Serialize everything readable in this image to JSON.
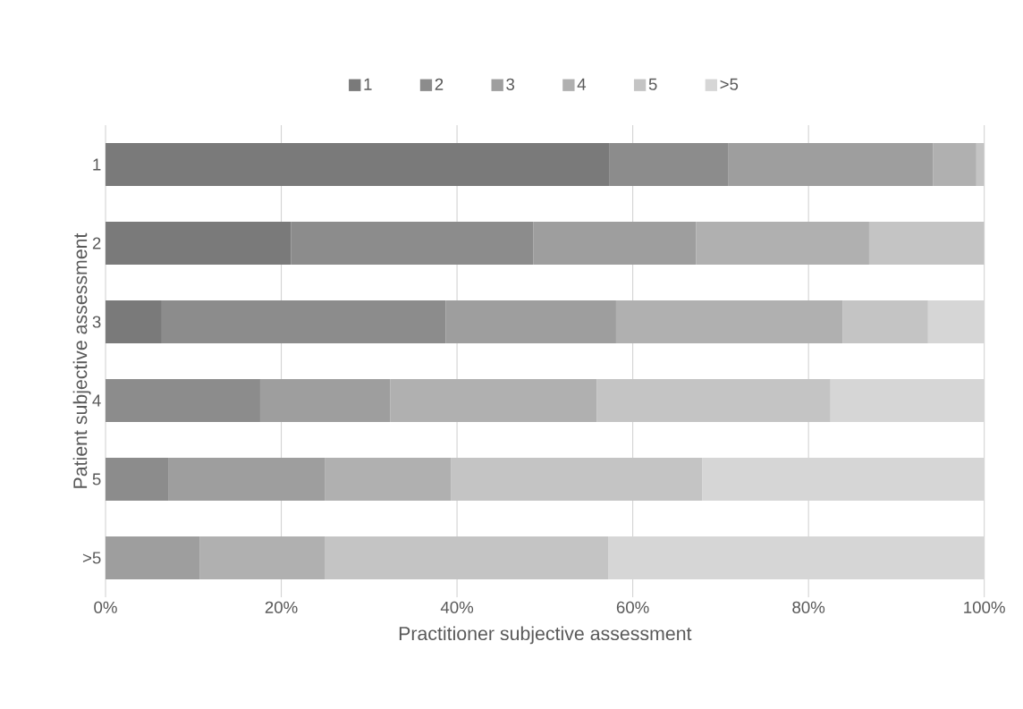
{
  "chart_data": {
    "type": "bar",
    "orientation": "horizontal",
    "stacked": true,
    "xlabel": "Practitioner subjective assessment",
    "ylabel": "Patient subjective assessment",
    "categories": [
      "1",
      "2",
      "3",
      "4",
      "5",
      ">5"
    ],
    "series": [
      {
        "name": "1",
        "color": "#7a7a7a",
        "values": [
          57.3,
          21.1,
          6.4,
          0,
          0,
          0
        ]
      },
      {
        "name": "2",
        "color": "#8c8c8c",
        "values": [
          13.6,
          27.6,
          32.3,
          17.6,
          7.2,
          0
        ]
      },
      {
        "name": "3",
        "color": "#9e9e9e",
        "values": [
          23.3,
          18.5,
          19.4,
          14.8,
          17.8,
          10.7
        ]
      },
      {
        "name": "4",
        "color": "#b0b0b0",
        "values": [
          4.9,
          19.7,
          25.8,
          23.5,
          14.3,
          14.3
        ]
      },
      {
        "name": "5",
        "color": "#c4c4c4",
        "values": [
          0.9,
          13.1,
          9.7,
          26.6,
          28.6,
          32.2
        ]
      },
      {
        "name": ">5",
        "color": "#d6d6d6",
        "values": [
          0,
          0,
          6.4,
          17.5,
          32.1,
          42.8
        ]
      }
    ],
    "xlim": [
      0,
      100
    ],
    "xticks": [
      {
        "value": 0,
        "label": "0%"
      },
      {
        "value": 20,
        "label": "20%"
      },
      {
        "value": 40,
        "label": "40%"
      },
      {
        "value": 60,
        "label": "60%"
      },
      {
        "value": 80,
        "label": "80%"
      },
      {
        "value": 100,
        "label": "100%"
      }
    ],
    "grid": "x",
    "legend": "top"
  }
}
